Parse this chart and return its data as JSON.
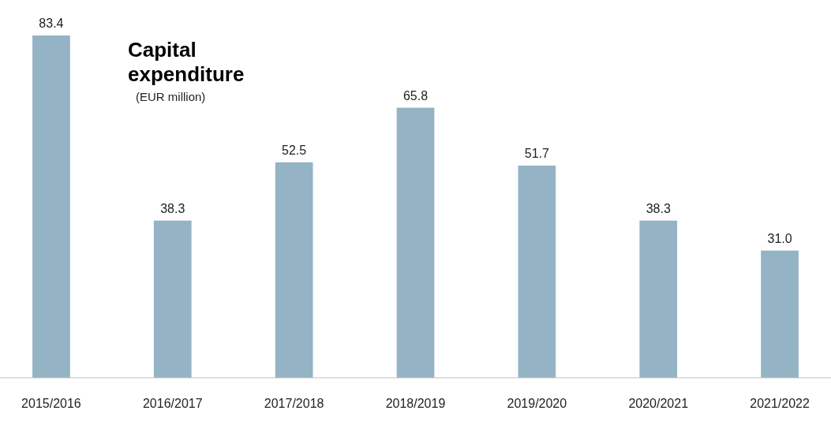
{
  "chart_data": {
    "type": "bar",
    "title": "Capital expenditure",
    "subtitle": "(EUR million)",
    "categories": [
      "2015/2016",
      "2016/2017",
      "2017/2018",
      "2018/2019",
      "2019/2020",
      "2020/2021",
      "2021/2022"
    ],
    "values": [
      83.4,
      38.3,
      52.5,
      65.8,
      51.7,
      38.3,
      31.0
    ],
    "value_labels": [
      "83.4",
      "38.3",
      "52.5",
      "65.8",
      "51.7",
      "38.3",
      "31.0"
    ],
    "color": "#94b3c4"
  }
}
